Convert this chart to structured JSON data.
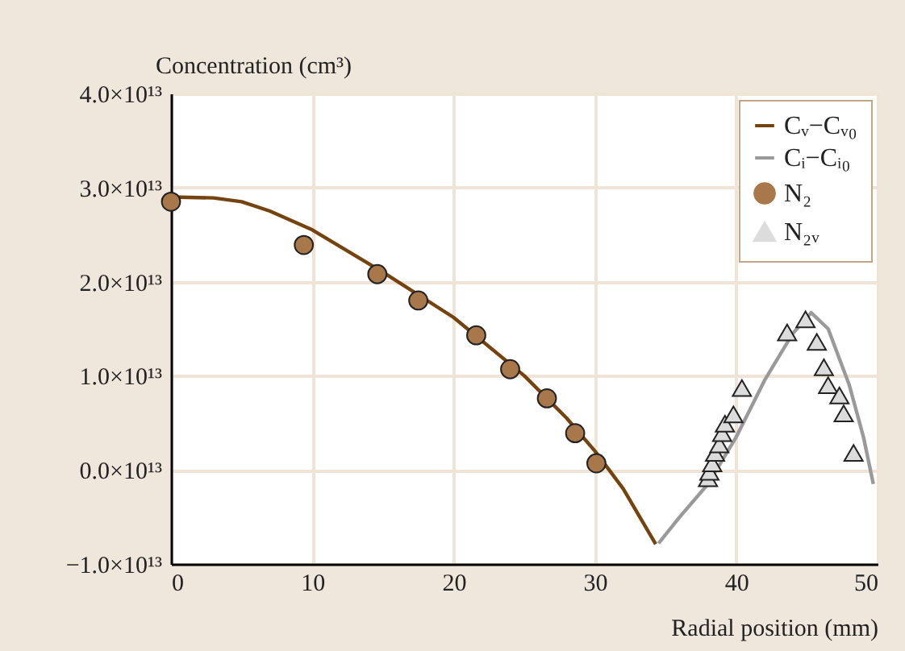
{
  "chart_data": {
    "type": "line",
    "xlabel": "Radial position (mm)",
    "ylabel": "Concentration (cm³)",
    "xlim": [
      0,
      50
    ],
    "xticks": [
      0,
      10,
      20,
      30,
      40,
      50
    ],
    "ylim": [
      -10000000000000.0,
      40000000000000.0
    ],
    "yticks": [
      {
        "value": -10000000000000.0,
        "label": "−1.0×10¹³"
      },
      {
        "value": 0,
        "label": "0.0×10¹³"
      },
      {
        "value": 10000000000000.0,
        "label": "1.0×10¹³"
      },
      {
        "value": 20000000000000.0,
        "label": "2.0×10¹³"
      },
      {
        "value": 30000000000000.0,
        "label": "3.0×10¹³"
      },
      {
        "value": 40000000000000.0,
        "label": "4.0×10¹³"
      }
    ],
    "grid": true,
    "legend": "top right",
    "series": [
      {
        "name": "Cᵥ−Cᵥ₀",
        "color": "#74430f",
        "marker": "none",
        "x": [
          0,
          3,
          5,
          7,
          10,
          15,
          20,
          25,
          28,
          30,
          32,
          34.3
        ],
        "values": [
          29000000000000.0,
          28900000000000.0,
          28500000000000.0,
          27500000000000.0,
          25500000000000.0,
          21000000000000.0,
          16200000000000.0,
          10000000000000.0,
          5500000000000.0,
          2000000000000.0,
          -2000000000000.0,
          -7900000000000.0
        ]
      },
      {
        "name": "Cᵢ−Cᵢ₀",
        "color": "#9a9a9a",
        "marker": "none",
        "x": [
          34.5,
          36,
          38,
          40,
          42,
          44,
          45.3,
          46.5,
          48,
          49,
          49.7
        ],
        "values": [
          -7800000000000.0,
          -5000000000000.0,
          -1500000000000.0,
          3500000000000.0,
          9500000000000.0,
          14500000000000.0,
          16700000000000.0,
          15000000000000.0,
          9000000000000.0,
          3500000000000.0,
          -1500000000000.0
        ]
      },
      {
        "name": "N₂",
        "type": "scatter",
        "color": "#a8784a",
        "marker": "circle",
        "x": [
          0,
          9.4,
          14.6,
          17.5,
          21.6,
          24.0,
          26.6,
          28.6,
          30.1
        ],
        "values": [
          28500000000000.0,
          23900000000000.0,
          20800000000000.0,
          18000000000000.0,
          14300000000000.0,
          10700000000000.0,
          7600000000000.0,
          3900000000000.0,
          700000000000.0
        ]
      },
      {
        "name": "N₂ᵥ",
        "type": "scatter",
        "color": "#dcdcdc",
        "marker": "triangle",
        "x": [
          38.0,
          38.1,
          38.3,
          38.5,
          38.8,
          39.0,
          39.2,
          39.8,
          40.4,
          43.6,
          44.9,
          45.7,
          46.2,
          46.5,
          47.3,
          47.6,
          48.3
        ],
        "values": [
          -900000000000.0,
          -200000000000.0,
          700000000000.0,
          1800000000000.0,
          2700000000000.0,
          3900000000000.0,
          4900000000000.0,
          5900000000000.0,
          8700000000000.0,
          14600000000000.0,
          16000000000000.0,
          13600000000000.0,
          10900000000000.0,
          9000000000000.0,
          7900000000000.0,
          6000000000000.0,
          1800000000000.0
        ]
      }
    ]
  }
}
